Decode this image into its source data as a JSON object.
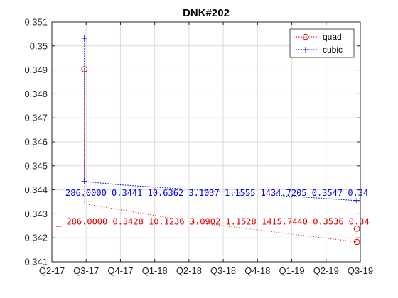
{
  "chart_data": {
    "type": "line",
    "title": "DNK#202",
    "xlabel": "",
    "ylabel": "",
    "grid": true,
    "legend_position": "top-right",
    "x_ticks": [
      "Q2-17",
      "Q3-17",
      "Q4-17",
      "Q1-18",
      "Q2-18",
      "Q3-18",
      "Q4-18",
      "Q1-19",
      "Q2-19",
      "Q3-19"
    ],
    "x_range": [
      0,
      9
    ],
    "ylim": [
      0.341,
      0.351
    ],
    "y_ticks": [
      "0.341",
      "0.342",
      "0.343",
      "0.344",
      "0.345",
      "0.346",
      "0.347",
      "0.348",
      "0.349",
      "0.35",
      "0.351"
    ],
    "series": [
      {
        "name": "quad",
        "color": "#e00000",
        "marker": "circle",
        "line_style": "dotted",
        "points": [
          {
            "x": 0.95,
            "y": 0.34903
          },
          {
            "x": 0.95,
            "y": 0.34342
          },
          {
            "x": 4.3,
            "y": 0.34262
          },
          {
            "x": 8.9,
            "y": 0.34183
          },
          {
            "x": 8.9,
            "y": 0.34238
          }
        ],
        "marker_points": [
          {
            "x": 0.95,
            "y": 0.34903
          },
          {
            "x": 8.9,
            "y": 0.34183
          },
          {
            "x": 8.9,
            "y": 0.34238
          }
        ]
      },
      {
        "name": "cubic",
        "color": "#0000cc",
        "marker": "plus",
        "line_style": "dotted",
        "points": [
          {
            "x": 0.95,
            "y": 0.35032
          },
          {
            "x": 0.95,
            "y": 0.34435
          },
          {
            "x": 1.9,
            "y": 0.34422
          },
          {
            "x": 8.9,
            "y": 0.34355
          }
        ],
        "marker_points": [
          {
            "x": 0.95,
            "y": 0.35032
          },
          {
            "x": 0.95,
            "y": 0.34435
          },
          {
            "x": 8.9,
            "y": 0.34355
          }
        ]
      }
    ],
    "annotations": [
      {
        "series": "cubic",
        "text": "286.0000  0.3441  10.6362  3.1037  1.1555  1434.7205  0.3547  0.34",
        "color": "#0000ff"
      },
      {
        "series": "quad",
        "text": "_ 286.0000  0.3428  10.1236  3.0902  1.1528  1415.7440  0.3536  0.34",
        "color": "#e00000"
      }
    ]
  }
}
